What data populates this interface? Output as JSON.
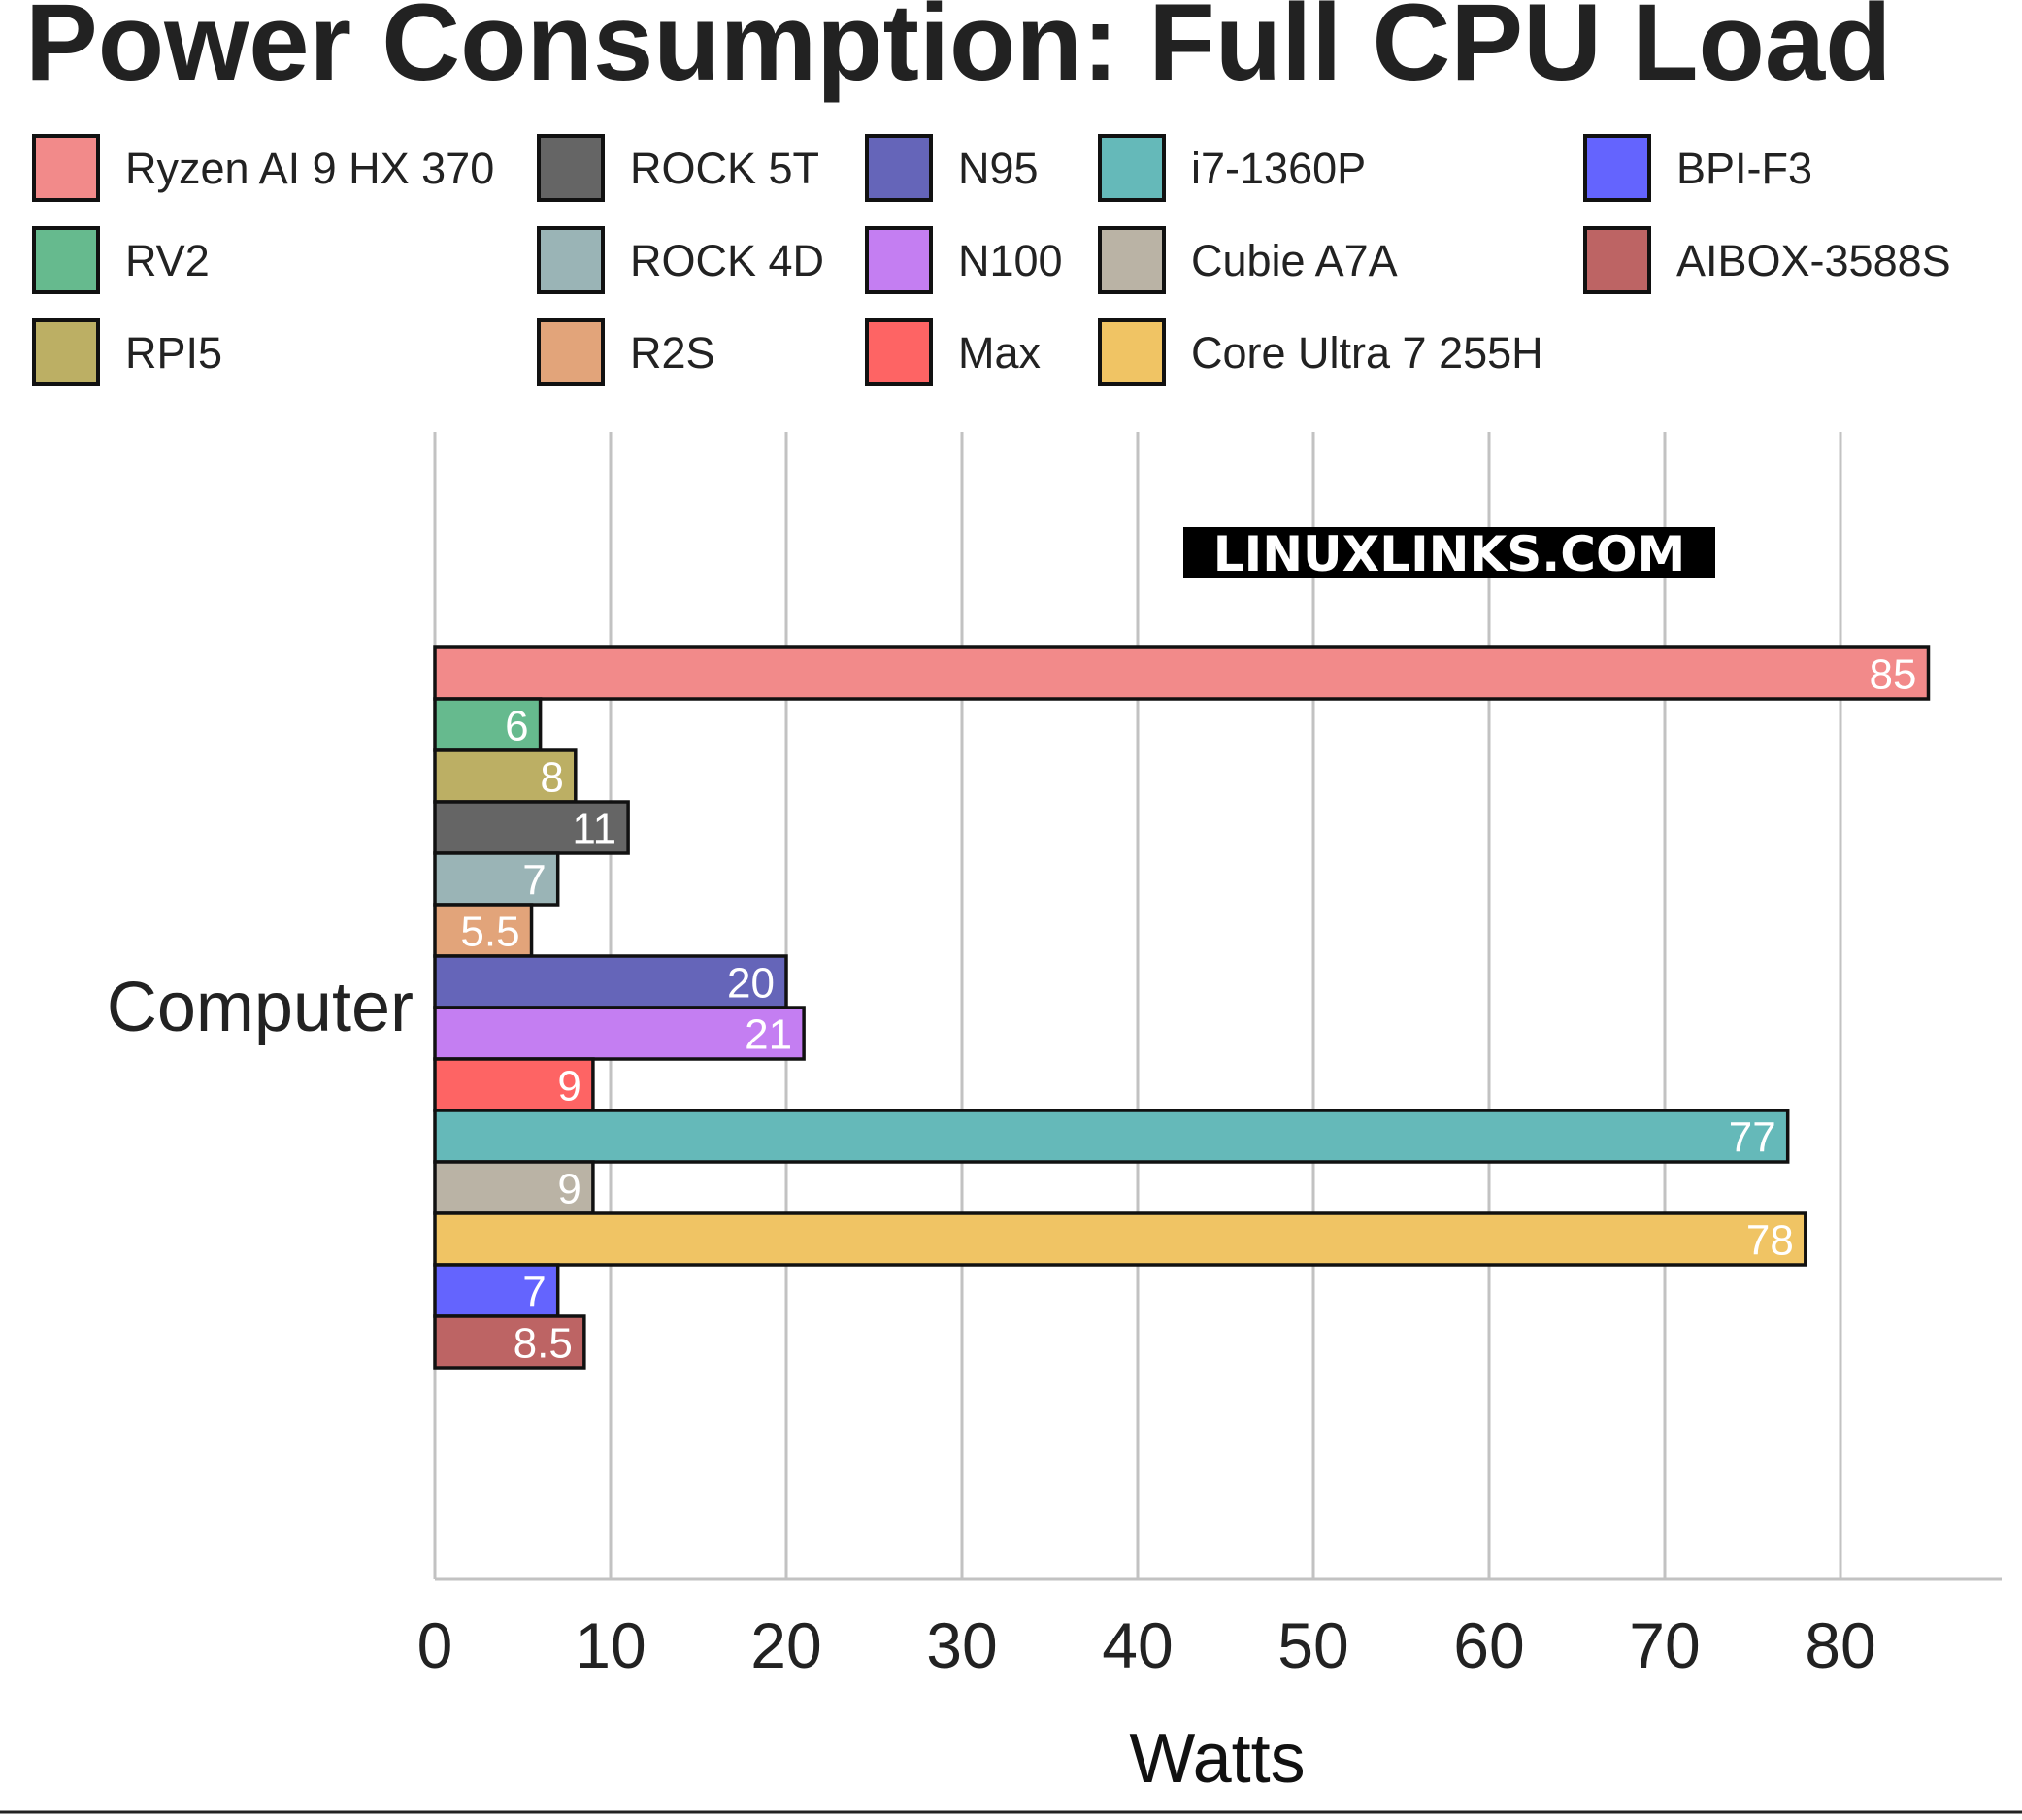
{
  "chart_data": {
    "type": "bar",
    "orientation": "horizontal",
    "title": "Power Consumption: Full CPU Load",
    "xlabel": "Watts",
    "ylabel": "",
    "categories": [
      "Computer"
    ],
    "xlim": [
      0,
      90
    ],
    "xticks": [
      0,
      10,
      20,
      30,
      40,
      50,
      60,
      70,
      80
    ],
    "grid": "vertical",
    "legend_position": "top",
    "series": [
      {
        "name": "Ryzen AI 9 HX 370",
        "value": 85,
        "label": "85",
        "color": "#f28a8a"
      },
      {
        "name": "RV2",
        "value": 6,
        "label": "6",
        "color": "#66ba8e"
      },
      {
        "name": "RPI5",
        "value": 8,
        "label": "8",
        "color": "#bcaf64"
      },
      {
        "name": "ROCK 5T",
        "value": 11,
        "label": "11",
        "color": "#656565"
      },
      {
        "name": "ROCK 4D",
        "value": 7,
        "label": "7",
        "color": "#9ab4b6"
      },
      {
        "name": "R2S",
        "value": 5.5,
        "label": "5.5",
        "color": "#e2a47a"
      },
      {
        "name": "N95",
        "value": 20,
        "label": "20",
        "color": "#6565b9"
      },
      {
        "name": "N100",
        "value": 21,
        "label": "21",
        "color": "#c47ef2"
      },
      {
        "name": "Max",
        "value": 9,
        "label": "9",
        "color": "#fe6464"
      },
      {
        "name": "i7-1360P",
        "value": 77,
        "label": "77",
        "color": "#65b9b9"
      },
      {
        "name": "Cubie A7A",
        "value": 9,
        "label": "9",
        "color": "#bab3a5"
      },
      {
        "name": "Core Ultra 7 255H",
        "value": 78,
        "label": "78",
        "color": "#f0c464"
      },
      {
        "name": "BPI-F3",
        "value": 7,
        "label": "7",
        "color": "#6464fe"
      },
      {
        "name": "AIBOX-3588S",
        "value": 8.5,
        "label": "8.5",
        "color": "#bd6464"
      }
    ],
    "legend_rows": [
      [
        "Ryzen AI 9 HX 370",
        "ROCK 5T",
        "N95",
        "i7-1360P",
        "BPI-F3"
      ],
      [
        "RV2",
        "ROCK 4D",
        "N100",
        "Cubie A7A",
        "AIBOX-3588S"
      ],
      [
        "RPI5",
        "R2S",
        "Max",
        "Core Ultra 7 255H"
      ]
    ],
    "watermark": "LINUXLINKS.COM"
  }
}
